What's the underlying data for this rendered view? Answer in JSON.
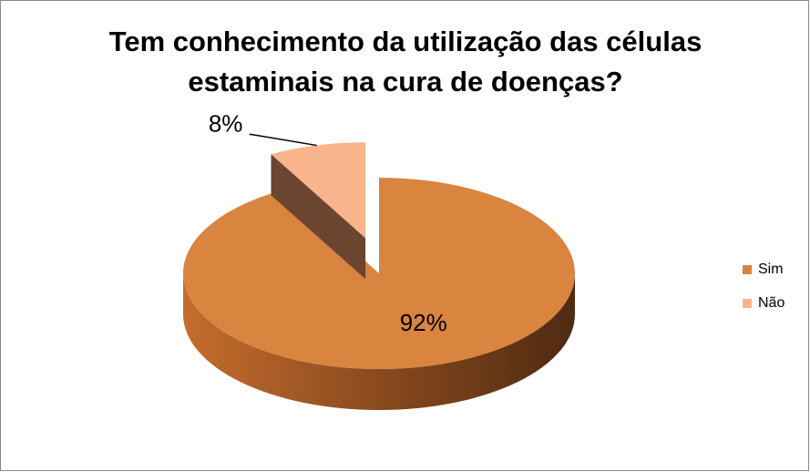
{
  "chart_data": {
    "type": "pie",
    "title": "Tem conhecimento da utilização das células estaminais na cura de doenças?",
    "categories": [
      "Sim",
      "Não"
    ],
    "values": [
      92,
      8
    ],
    "value_labels": [
      "92%",
      "8%"
    ],
    "colors": [
      "#d9843f",
      "#f9b48c"
    ],
    "legend": "right"
  }
}
